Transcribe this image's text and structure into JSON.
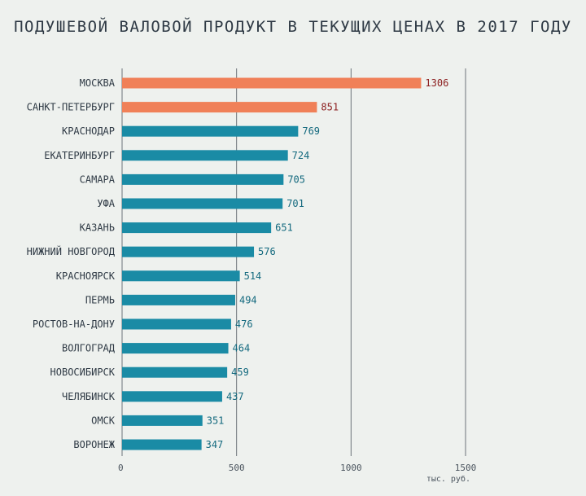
{
  "chart_data": {
    "type": "bar",
    "orientation": "horizontal",
    "title": "ПОДУШЕВОЙ ВАЛОВОЙ ПРОДУКТ В ТЕКУЩИХ ЦЕНАХ В 2017 ГОДУ",
    "categories": [
      "МОСКВА",
      "САНКТ-ПЕТЕРБУРГ",
      "КРАСНОДАР",
      "ЕКАТЕРИНБУРГ",
      "САМАРА",
      "УФА",
      "КАЗАНЬ",
      "НИЖНИЙ НОВГОРОД",
      "КРАСНОЯРСК",
      "ПЕРМЬ",
      "РОСТОВ-НА-ДОНУ",
      "ВОЛГОГРАД",
      "НОВОСИБИРСК",
      "ЧЕЛЯБИНСК",
      "ОМСК",
      "ВОРОНЕЖ"
    ],
    "values": [
      1306,
      851,
      769,
      724,
      705,
      701,
      651,
      576,
      514,
      494,
      476,
      464,
      459,
      437,
      351,
      347
    ],
    "highlighted": [
      true,
      true,
      false,
      false,
      false,
      false,
      false,
      false,
      false,
      false,
      false,
      false,
      false,
      false,
      false,
      false
    ],
    "x_ticks": [
      0,
      500,
      1000,
      1500
    ],
    "xlim": [
      0,
      1500
    ],
    "xlabel": "тыс. руб.",
    "gridlines": true
  },
  "colors": {
    "background": "#eef1ee",
    "highlight_bar": "#f08058",
    "default_bar": "#1a8ba5",
    "highlight_label": "#8b1d1d",
    "default_label": "#13697e",
    "grid": "#6c747a",
    "axis_text": "#2f3a45"
  }
}
